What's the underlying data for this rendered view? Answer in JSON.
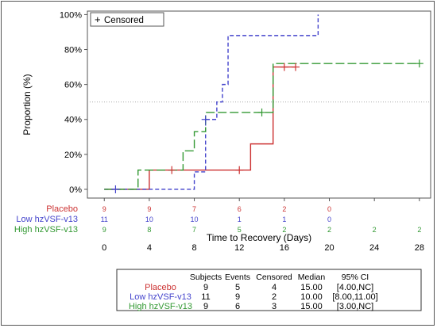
{
  "chart_data": {
    "type": "line",
    "step": true,
    "xlabel": "Time to Recovery (Days)",
    "ylabel": "Proportion (%)",
    "xlim": [
      -1.5,
      29
    ],
    "ylim": [
      -5,
      102
    ],
    "x_ticks": [
      0,
      4,
      8,
      12,
      16,
      20,
      24,
      28
    ],
    "y_ticks": [
      0,
      20,
      40,
      60,
      80,
      100
    ],
    "y_tick_labels": [
      "0%",
      "20%",
      "40%",
      "60%",
      "80%",
      "100%"
    ],
    "reference_line": 50,
    "legend": {
      "position": "top-left",
      "censored_symbol": "+",
      "censored_label": "Censored"
    },
    "series": [
      {
        "name": "Placebo",
        "color": "#cc3333",
        "dash": "solid",
        "steps": [
          [
            0,
            0
          ],
          [
            4,
            11
          ],
          [
            13,
            26
          ],
          [
            15,
            70
          ],
          [
            17,
            70
          ]
        ],
        "censored": [
          [
            6,
            11
          ],
          [
            12,
            11
          ],
          [
            16,
            70
          ],
          [
            17,
            70
          ]
        ]
      },
      {
        "name": "Low hzVSF-v13",
        "color": "#4444cc",
        "dash": "short",
        "steps": [
          [
            0,
            0
          ],
          [
            8,
            10
          ],
          [
            9,
            40
          ],
          [
            10,
            50
          ],
          [
            10.5,
            60
          ],
          [
            11,
            88
          ],
          [
            19,
            100
          ],
          [
            19,
            100
          ]
        ],
        "censored": [
          [
            1,
            0
          ],
          [
            9,
            40
          ]
        ]
      },
      {
        "name": "High hzVSF-v13",
        "color": "#339933",
        "dash": "long",
        "steps": [
          [
            0,
            0
          ],
          [
            3,
            11
          ],
          [
            7,
            22
          ],
          [
            8,
            33
          ],
          [
            9,
            44
          ],
          [
            15,
            72
          ],
          [
            28,
            72
          ]
        ],
        "censored": [
          [
            14,
            44
          ],
          [
            28,
            72
          ]
        ]
      }
    ],
    "at_risk": {
      "x": [
        0,
        4,
        8,
        12,
        16,
        20,
        24,
        28
      ],
      "rows": [
        {
          "label": "Placebo",
          "color": "#cc3333",
          "values": [
            "9",
            "9",
            "7",
            "6",
            "2",
            "0",
            "",
            ""
          ]
        },
        {
          "label": "Low hzVSF-v13",
          "color": "#4444cc",
          "values": [
            "11",
            "10",
            "10",
            "1",
            "1",
            "0",
            "",
            ""
          ]
        },
        {
          "label": "High hzVSF-v13",
          "color": "#339933",
          "values": [
            "9",
            "8",
            "7",
            "5",
            "2",
            "2",
            "2",
            "2"
          ]
        }
      ]
    },
    "summary_table": {
      "headers": [
        "",
        "Subjects",
        "Events",
        "Censored",
        "Median",
        "95% CI"
      ],
      "rows": [
        {
          "label": "Placebo",
          "color": "#cc3333",
          "cells": [
            "9",
            "5",
            "4",
            "15.00",
            "[4.00,NC]"
          ]
        },
        {
          "label": "Low hzVSF-v13",
          "color": "#4444cc",
          "cells": [
            "11",
            "9",
            "2",
            "10.00",
            "[8.00,11.00]"
          ]
        },
        {
          "label": "High hzVSF-v13",
          "color": "#339933",
          "cells": [
            "9",
            "6",
            "3",
            "15.00",
            "[3.00,NC]"
          ]
        }
      ]
    }
  }
}
